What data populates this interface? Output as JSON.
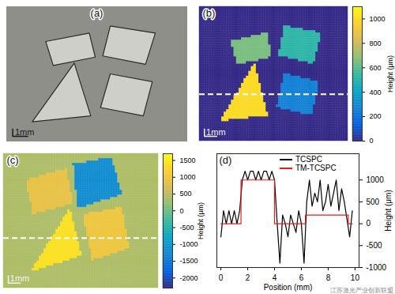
{
  "chart_data": [
    {
      "type": "image",
      "label": "(a)",
      "xlim": [
        0,
        12
      ],
      "ylim": [
        0,
        11.2
      ],
      "scale_bar": {
        "label": "1mm",
        "length": 1
      },
      "tick_labels": false
    },
    {
      "type": "heatmap",
      "label": "(b)",
      "xlim": [
        0,
        12
      ],
      "ylim": [
        0,
        11.2
      ],
      "background": 0,
      "shapes": [
        {
          "points": [
            [
              2.6,
              2.9
            ],
            [
              5.5,
              2.2
            ],
            [
              5.9,
              4.2
            ],
            [
              3.1,
              4.9
            ]
          ],
          "value": 650
        },
        {
          "points": [
            [
              6.9,
              1.6
            ],
            [
              9.9,
              2.2
            ],
            [
              9.25,
              4.8
            ],
            [
              6.4,
              4.1
            ]
          ],
          "value": 520
        },
        {
          "points": [
            [
              4.5,
              4.7
            ],
            [
              1.7,
              9.6
            ],
            [
              5.6,
              9.1
            ]
          ],
          "value": 1000
        },
        {
          "points": [
            [
              6.9,
              5.6
            ],
            [
              9.7,
              6.25
            ],
            [
              9.1,
              9.1
            ],
            [
              6.25,
              8.4
            ]
          ],
          "value": 260
        }
      ],
      "profile_y": 7.3,
      "colorbar": {
        "lim": [
          0,
          1100
        ],
        "ticks": [
          0,
          200,
          400,
          600,
          800,
          1000
        ],
        "label": "Height (μm)"
      },
      "scale_bar": {
        "label": "1mm",
        "length": 1
      },
      "tick_labels": false
    },
    {
      "type": "heatmap",
      "label": "(c)",
      "xlim": [
        0,
        13
      ],
      "ylim": [
        0,
        11
      ],
      "background": 400,
      "shapes": [
        {
          "points": [
            [
              1.9,
              2.2
            ],
            [
              5.3,
              1.25
            ],
            [
              5.9,
              4.1
            ],
            [
              2.5,
              5.0
            ]
          ],
          "value": 900
        },
        {
          "points": [
            [
              5.9,
              0.9
            ],
            [
              9.1,
              0.3
            ],
            [
              10.0,
              3.4
            ],
            [
              6.25,
              4.5
            ]
          ],
          "value": -1200
        },
        {
          "points": [
            [
              5.6,
              4.5
            ],
            [
              2.3,
              9.7
            ],
            [
              6.6,
              8.4
            ]
          ],
          "value": 1400
        },
        {
          "points": [
            [
              6.7,
              5.0
            ],
            [
              10.0,
              4.4
            ],
            [
              10.6,
              7.8
            ],
            [
              7.5,
              8.75
            ]
          ],
          "value": 1000
        }
      ],
      "profile_y": 6.9,
      "colorbar": {
        "lim": [
          -2300,
          1700
        ],
        "ticks": [
          -2000,
          -1500,
          -1000,
          -500,
          0,
          500,
          1000,
          1500
        ],
        "label": "Height (μm)"
      },
      "scale_bar": {
        "label": "1mm",
        "length": 1
      },
      "tick_labels": false
    },
    {
      "type": "line",
      "label": "(d)",
      "xlabel": "Position (mm)",
      "ylabel": "Height (μm)",
      "xlim": [
        -0.3,
        10.3
      ],
      "xticks": [
        0,
        2,
        4,
        6,
        8,
        10
      ],
      "ylim": [
        -1000,
        1600
      ],
      "yticks": [
        -1000,
        -500,
        0,
        500,
        1000
      ],
      "legend": "top",
      "series": [
        {
          "name": "TCSPC",
          "color": "#000000",
          "x": [
            0,
            0.2,
            0.4,
            0.6,
            0.8,
            1.0,
            1.2,
            1.4,
            1.6,
            1.8,
            2.0,
            2.2,
            2.4,
            2.6,
            2.8,
            3.0,
            3.2,
            3.4,
            3.6,
            3.8,
            4.0,
            4.2,
            4.4,
            4.6,
            4.8,
            5.0,
            5.2,
            5.4,
            5.6,
            5.8,
            6.0,
            6.2,
            6.4,
            6.6,
            6.8,
            7.0,
            7.2,
            7.4,
            7.6,
            7.8,
            8.0,
            8.2,
            8.4,
            8.6,
            8.8,
            9.0,
            9.2,
            9.4,
            9.6,
            9.8
          ],
          "values": [
            -300,
            300,
            0,
            300,
            0,
            300,
            0,
            300,
            1000,
            1200,
            1000,
            1200,
            1200,
            1000,
            1200,
            1000,
            1200,
            1200,
            1000,
            1200,
            1000,
            0,
            -900,
            200,
            0,
            -300,
            200,
            0,
            -200,
            300,
            0,
            -900,
            500,
            1000,
            400,
            700,
            500,
            1000,
            300,
            500,
            900,
            400,
            700,
            1000,
            300,
            800,
            500,
            100,
            -300,
            300
          ]
        },
        {
          "name": "TM-TCSPC",
          "color": "#e41a1c",
          "x": [
            0,
            1.5,
            1.5,
            4,
            4,
            6.3,
            6.3,
            9.5,
            9.5,
            9.8
          ],
          "values": [
            0,
            0,
            1000,
            1000,
            0,
            0,
            200,
            200,
            0,
            0
          ]
        }
      ]
    }
  ],
  "watermark": "江苏激光产业创新联盟"
}
